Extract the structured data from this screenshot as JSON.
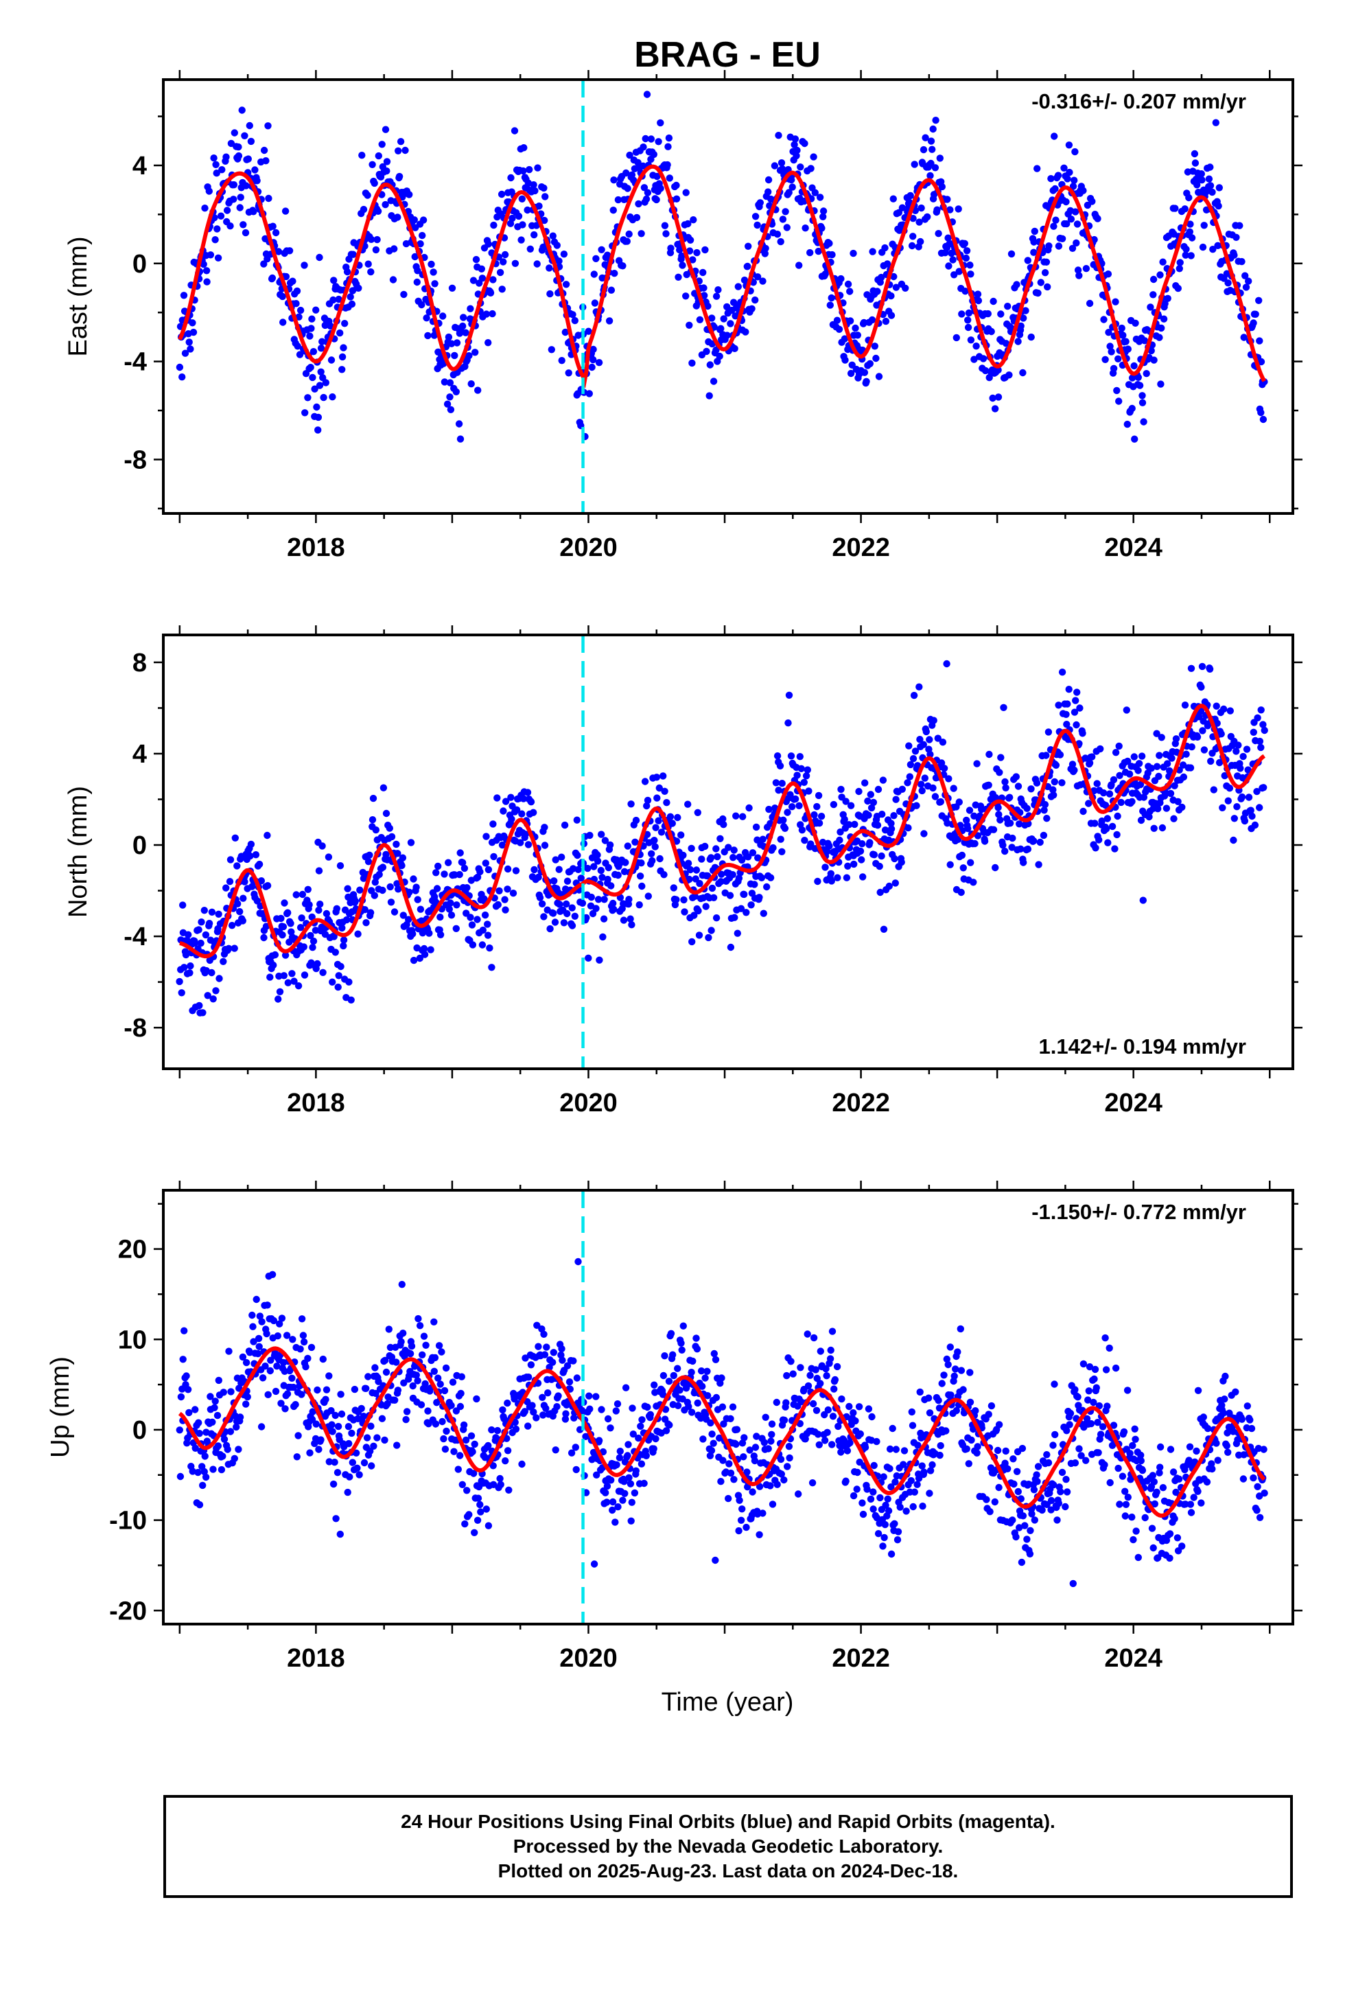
{
  "title": "BRAG - EU",
  "xlabel": "Time (year)",
  "x_ticks": [
    "2018",
    "2020",
    "2022",
    "2024"
  ],
  "colors": {
    "points": "#0000ff",
    "fit": "#ff0000",
    "marker": "#00e5ee",
    "frame": "#000000"
  },
  "footer": {
    "line1": "24 Hour Positions Using Final Orbits (blue) and Rapid Orbits (magenta).",
    "line2": "Processed by the Nevada Geodetic Laboratory.",
    "line3": "Plotted on 2025-Aug-23. Last data on 2024-Dec-18."
  },
  "chart_data": [
    {
      "type": "scatter",
      "component": "east",
      "ylabel": "East (mm)",
      "rate_label": "-0.316+/- 0.207 mm/yr",
      "rate_position": "top-right",
      "xlim": [
        2016.88,
        2025.17
      ],
      "ylim": [
        -10.2,
        7.5
      ],
      "y_ticks": [
        -8,
        -4,
        0,
        4
      ],
      "y_tick_labels": [
        "-8",
        "-4",
        "0",
        "4"
      ],
      "x_ticks": [
        2018,
        2020,
        2022,
        2024
      ],
      "vertical_marker_x": 2019.96,
      "grid": false,
      "series": [
        {
          "kind": "fit-line",
          "x": [
            2017.0,
            2017.25,
            2017.5,
            2017.75,
            2018.0,
            2018.25,
            2018.5,
            2018.75,
            2019.0,
            2019.25,
            2019.5,
            2019.75,
            2019.96,
            2020.0,
            2020.25,
            2020.5,
            2020.75,
            2021.0,
            2021.25,
            2021.5,
            2021.75,
            2022.0,
            2022.25,
            2022.5,
            2022.75,
            2023.0,
            2023.25,
            2023.5,
            2023.75,
            2024.0,
            2024.25,
            2024.5,
            2024.75,
            2024.96
          ],
          "y": [
            -3.1,
            2.3,
            3.5,
            -0.6,
            -4.0,
            -0.7,
            3.2,
            0.5,
            -4.3,
            -0.8,
            2.9,
            0.0,
            -4.6,
            -3.4,
            1.8,
            3.9,
            -0.2,
            -3.5,
            0.5,
            3.7,
            0.1,
            -3.8,
            0.2,
            3.4,
            -0.2,
            -4.2,
            -0.5,
            3.1,
            -0.2,
            -4.5,
            -0.6,
            2.7,
            -0.9,
            -4.8
          ]
        },
        {
          "kind": "daily-positions",
          "x_range": [
            2017.0,
            2024.96
          ],
          "seasonal_amplitude": 3.8,
          "scatter": 1.1
        }
      ]
    },
    {
      "type": "scatter",
      "component": "north",
      "ylabel": "North (mm)",
      "rate_label": "1.142+/- 0.194 mm/yr",
      "rate_position": "bottom-right",
      "xlim": [
        2016.88,
        2025.17
      ],
      "ylim": [
        -9.8,
        9.2
      ],
      "y_ticks": [
        -8,
        -4,
        0,
        4,
        8
      ],
      "y_tick_labels": [
        "-8",
        "-4",
        "0",
        "4",
        "8"
      ],
      "x_ticks": [
        2018,
        2020,
        2022,
        2024
      ],
      "vertical_marker_x": 2019.96,
      "grid": false,
      "series": [
        {
          "kind": "fit-line",
          "x": [
            2017.0,
            2017.25,
            2017.5,
            2017.75,
            2018.0,
            2018.25,
            2018.5,
            2018.75,
            2019.0,
            2019.25,
            2019.5,
            2019.75,
            2019.96,
            2020.0,
            2020.25,
            2020.5,
            2020.75,
            2021.0,
            2021.25,
            2021.5,
            2021.75,
            2022.0,
            2022.25,
            2022.5,
            2022.75,
            2023.0,
            2023.25,
            2023.5,
            2023.75,
            2024.0,
            2024.25,
            2024.5,
            2024.75,
            2024.96
          ],
          "y": [
            -4.3,
            -4.7,
            -1.1,
            -4.6,
            -3.3,
            -3.8,
            0.0,
            -3.5,
            -2.0,
            -2.6,
            1.1,
            -2.2,
            -1.7,
            -1.6,
            -2.0,
            1.6,
            -2.0,
            -0.9,
            -0.9,
            2.7,
            -0.7,
            0.6,
            0.1,
            3.8,
            0.3,
            1.9,
            1.2,
            5.0,
            1.5,
            2.9,
            2.6,
            6.1,
            2.6,
            3.9
          ]
        },
        {
          "kind": "daily-positions",
          "x_range": [
            2017.0,
            2024.96
          ],
          "seasonal_amplitude": 1.6,
          "scatter": 1.2
        }
      ]
    },
    {
      "type": "scatter",
      "component": "up",
      "ylabel": "Up (mm)",
      "rate_label": "-1.150+/- 0.772 mm/yr",
      "rate_position": "top-right",
      "xlim": [
        2016.88,
        2025.17
      ],
      "ylim": [
        -21.5,
        26.5
      ],
      "y_ticks": [
        -20,
        -10,
        0,
        10,
        20
      ],
      "y_tick_labels": [
        "-20",
        "-10",
        "0",
        "10",
        "20"
      ],
      "x_ticks": [
        2018,
        2020,
        2022,
        2024
      ],
      "vertical_marker_x": 2019.96,
      "grid": false,
      "series": [
        {
          "kind": "fit-line",
          "x": [
            2017.0,
            2017.2,
            2017.45,
            2017.7,
            2017.95,
            2018.2,
            2018.45,
            2018.7,
            2018.95,
            2019.2,
            2019.45,
            2019.7,
            2019.96,
            2020.2,
            2020.45,
            2020.7,
            2020.95,
            2021.2,
            2021.45,
            2021.7,
            2021.95,
            2022.2,
            2022.45,
            2022.7,
            2022.95,
            2023.2,
            2023.45,
            2023.7,
            2023.95,
            2024.2,
            2024.45,
            2024.7,
            2024.96
          ],
          "y": [
            1.8,
            -2.0,
            4.0,
            9.0,
            4.0,
            -3.0,
            3.0,
            7.8,
            2.5,
            -4.5,
            1.5,
            6.5,
            1.0,
            -5.0,
            0.0,
            5.8,
            0.5,
            -6.0,
            -1.0,
            4.4,
            -1.0,
            -7.0,
            -2.0,
            3.3,
            -2.5,
            -8.5,
            -3.5,
            2.4,
            -3.5,
            -9.5,
            -4.5,
            1.2,
            -5.5
          ]
        },
        {
          "kind": "daily-positions",
          "x_range": [
            2017.0,
            2024.96
          ],
          "seasonal_amplitude": 7.0,
          "scatter": 3.2
        }
      ]
    }
  ]
}
